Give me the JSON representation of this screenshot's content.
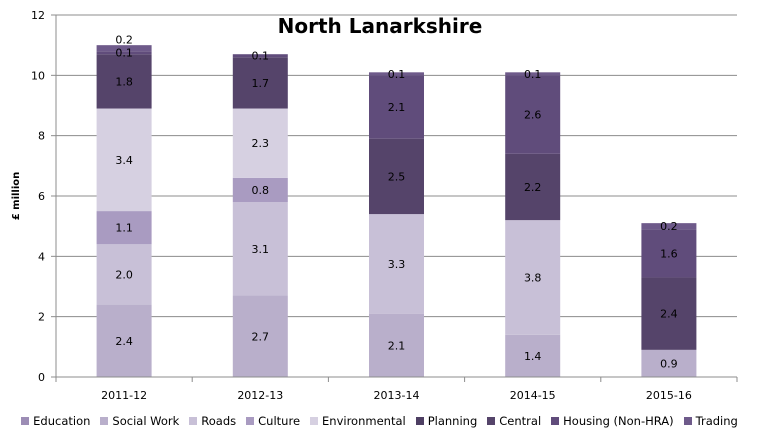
{
  "chart_data": {
    "type": "bar",
    "stacked": true,
    "title": "North Lanarkshire",
    "xlabel": "",
    "ylabel": "£ million",
    "ylim": [
      0,
      12
    ],
    "yticks": [
      "0",
      "2",
      "4",
      "6",
      "8",
      "10",
      "12"
    ],
    "grid": true,
    "legend_position": "bottom",
    "categories": [
      "2011-12",
      "2012-13",
      "2013-14",
      "2014-15",
      "2015-16"
    ],
    "series": [
      {
        "name": "Education",
        "color": "#9C8DB5",
        "values": [
          0,
          0,
          0,
          0,
          0
        ]
      },
      {
        "name": "Social Work",
        "color": "#B9AFCB",
        "values": [
          2.4,
          2.7,
          2.1,
          1.4,
          0.9
        ]
      },
      {
        "name": "Roads",
        "color": "#C8C0D7",
        "values": [
          2.0,
          3.1,
          3.3,
          3.8,
          0
        ]
      },
      {
        "name": "Culture",
        "color": "#A99BC1",
        "values": [
          1.1,
          0.8,
          0,
          0,
          0
        ]
      },
      {
        "name": "Environmental",
        "color": "#D6D0E1",
        "values": [
          3.4,
          2.3,
          0,
          0,
          0
        ]
      },
      {
        "name": "Planning",
        "color": "#4E3F63",
        "values": [
          0,
          0,
          0,
          0,
          0
        ]
      },
      {
        "name": "Central",
        "color": "#55446A",
        "values": [
          1.8,
          1.7,
          2.5,
          2.2,
          2.4
        ]
      },
      {
        "name": "Housing (Non-HRA)",
        "color": "#604C7B",
        "values": [
          0.1,
          0.1,
          2.1,
          2.6,
          1.6
        ]
      },
      {
        "name": "Trading",
        "color": "#6E5A8A",
        "values": [
          0.2,
          0,
          0.1,
          0.1,
          0.2
        ]
      }
    ]
  }
}
